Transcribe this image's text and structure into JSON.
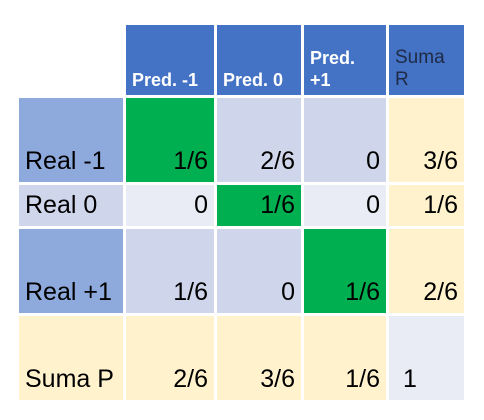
{
  "headers": {
    "pred_neg1": "Pred. -1",
    "pred_0": "Pred. 0",
    "pred_pos1": "Pred. +1",
    "suma_r": "Suma R"
  },
  "rows": [
    {
      "label": "Real -1",
      "values": [
        "1/6",
        "2/6",
        "0",
        "3/6"
      ]
    },
    {
      "label": "Real 0",
      "values": [
        "0",
        "1/6",
        "0",
        "1/6"
      ]
    },
    {
      "label": "Real +1",
      "values": [
        "1/6",
        "0",
        "1/6",
        "2/6"
      ]
    },
    {
      "label": "Suma P",
      "values": [
        "2/6",
        "3/6",
        "1/6",
        "1"
      ]
    }
  ],
  "colors": {
    "header": "#4472c4",
    "row_label": "#8ea9db",
    "diagonal": "#00b050",
    "cell_a": "#cfd5ea",
    "cell_b": "#e9ebf5",
    "sum": "#fff2cc"
  }
}
